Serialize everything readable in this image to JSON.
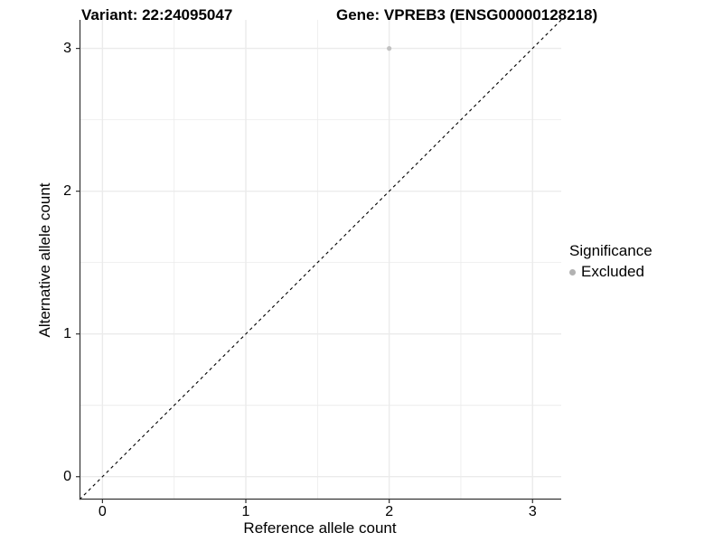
{
  "chart_data": {
    "type": "scatter",
    "titles": {
      "variant": "Variant: 22:24095047",
      "gene": "Gene: VPREB3 (ENSG00000128218)"
    },
    "xlabel": "Reference allele count",
    "ylabel": "Alternative allele count",
    "xlim": [
      -0.16,
      3.2
    ],
    "ylim": [
      -0.16,
      3.2
    ],
    "xticks": [
      0,
      1,
      2,
      3
    ],
    "yticks": [
      0,
      1,
      2,
      3
    ],
    "minor_step": 0.5,
    "grid": "on",
    "grid_color": "#ebebeb",
    "axis_line_color": "#333333",
    "identity_line": {
      "slope": 1,
      "intercept": 0,
      "style": "dashed",
      "color": "#000000"
    },
    "series": [
      {
        "name": "Excluded",
        "color": "#c1c1c1",
        "points": [
          {
            "x": 2,
            "y": 3
          }
        ]
      }
    ],
    "legend": {
      "position": "right",
      "title": "Significance",
      "items": [
        {
          "label": "Excluded",
          "color": "#b2b2b2"
        }
      ]
    }
  }
}
